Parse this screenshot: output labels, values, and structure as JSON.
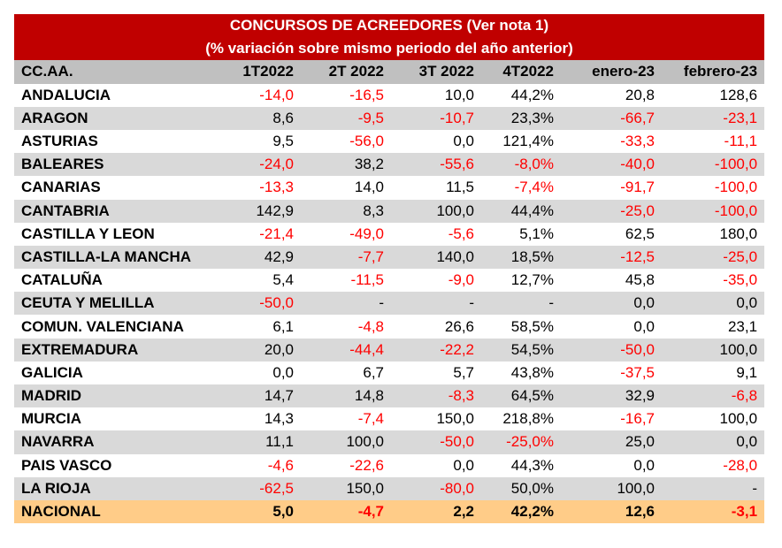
{
  "title": "CONCURSOS DE ACREEDORES (Ver nota 1)",
  "subtitle": "(% variación sobre mismo periodo del año anterior)",
  "columns": [
    "CC.AA.",
    "1T2022",
    "2T 2022",
    "3T 2022",
    "4T2022",
    "enero-23",
    "febrero-23"
  ],
  "rows": [
    [
      "ANDALUCIA",
      "-14,0",
      "-16,5",
      "10,0",
      "44,2%",
      "20,8",
      "128,6"
    ],
    [
      "ARAGON",
      "8,6",
      "-9,5",
      "-10,7",
      "23,3%",
      "-66,7",
      "-23,1"
    ],
    [
      "ASTURIAS",
      "9,5",
      "-56,0",
      "0,0",
      "121,4%",
      "-33,3",
      "-11,1"
    ],
    [
      "BALEARES",
      "-24,0",
      "38,2",
      "-55,6",
      "-8,0%",
      "-40,0",
      "-100,0"
    ],
    [
      "CANARIAS",
      "-13,3",
      "14,0",
      "11,5",
      "-7,4%",
      "-91,7",
      "-100,0"
    ],
    [
      "CANTABRIA",
      "142,9",
      "8,3",
      "100,0",
      "44,4%",
      "-25,0",
      "-100,0"
    ],
    [
      "CASTILLA Y LEON",
      "-21,4",
      "-49,0",
      "-5,6",
      "5,1%",
      "62,5",
      "180,0"
    ],
    [
      "CASTILLA-LA MANCHA",
      "42,9",
      "-7,7",
      "140,0",
      "18,5%",
      "-12,5",
      "-25,0"
    ],
    [
      "CATALUÑA",
      "5,4",
      "-11,5",
      "-9,0",
      "12,7%",
      "45,8",
      "-35,0"
    ],
    [
      "CEUTA Y MELILLA",
      "-50,0",
      "-",
      "-",
      "-",
      "0,0",
      "0,0"
    ],
    [
      "COMUN. VALENCIANA",
      "6,1",
      "-4,8",
      "26,6",
      "58,5%",
      "0,0",
      "23,1"
    ],
    [
      "EXTREMADURA",
      "20,0",
      "-44,4",
      "-22,2",
      "54,5%",
      "-50,0",
      "100,0"
    ],
    [
      "GALICIA",
      "0,0",
      "6,7",
      "5,7",
      "43,8%",
      "-37,5",
      "9,1"
    ],
    [
      "MADRID",
      "14,7",
      "14,8",
      "-8,3",
      "64,5%",
      "32,9",
      "-6,8"
    ],
    [
      "MURCIA",
      "14,3",
      "-7,4",
      "150,0",
      "218,8%",
      "-16,7",
      "100,0"
    ],
    [
      "NAVARRA",
      "11,1",
      "100,0",
      "-50,0",
      "-25,0%",
      "25,0",
      "0,0"
    ],
    [
      "PAIS VASCO",
      "-4,6",
      "-22,6",
      "0,0",
      "44,3%",
      "0,0",
      "-28,0"
    ],
    [
      "LA RIOJA",
      "-62,5",
      "150,0",
      "-80,0",
      "50,0%",
      "100,0",
      "-"
    ]
  ],
  "total": [
    "NACIONAL",
    "5,0",
    "-4,7",
    "2,2",
    "42,2%",
    "12,6",
    "-3,1"
  ],
  "colors": {
    "title_bg": "#c00000",
    "header_bg": "#c0c0c0",
    "stripe": "#d9d9d9",
    "total_bg": "#ffcc88",
    "negative": "#ff0000"
  }
}
